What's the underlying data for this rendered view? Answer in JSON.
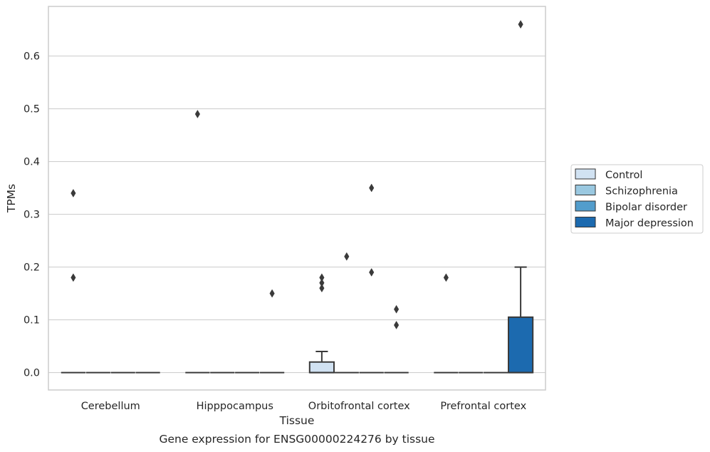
{
  "chart_data": {
    "type": "box",
    "caption": "Gene expression for ENSG00000224276 by tissue",
    "xlabel": "Tissue",
    "ylabel": "TPMs",
    "ylim": [
      -0.033,
      0.694
    ],
    "yticks": [
      0.0,
      0.1,
      0.2,
      0.3,
      0.4,
      0.5,
      0.6
    ],
    "ytick_labels": [
      "0.0",
      "0.1",
      "0.2",
      "0.3",
      "0.4",
      "0.5",
      "0.6"
    ],
    "categories": [
      "Cerebellum",
      "Hipppocampus",
      "Orbitofrontal cortex",
      "Prefrontal cortex"
    ],
    "grid": "horizontal",
    "legend_position": "right",
    "series": [
      {
        "name": "Control",
        "color": "#d1e2f2",
        "boxes": [
          {
            "q1": 0.0,
            "median": 0.0,
            "q3": 0.0,
            "whisker_low": 0.0,
            "whisker_high": 0.0,
            "outliers": [
              0.18,
              0.34
            ]
          },
          {
            "q1": 0.0,
            "median": 0.0,
            "q3": 0.0,
            "whisker_low": 0.0,
            "whisker_high": 0.0,
            "outliers": [
              0.49
            ]
          },
          {
            "q1": 0.0,
            "median": 0.0,
            "q3": 0.02,
            "whisker_low": 0.0,
            "whisker_high": 0.04,
            "outliers": [
              0.16,
              0.17,
              0.18
            ]
          },
          {
            "q1": 0.0,
            "median": 0.0,
            "q3": 0.0,
            "whisker_low": 0.0,
            "whisker_high": 0.0,
            "outliers": [
              0.18
            ]
          }
        ]
      },
      {
        "name": "Schizophrenia",
        "color": "#9ac8e0",
        "boxes": [
          {
            "q1": 0.0,
            "median": 0.0,
            "q3": 0.0,
            "whisker_low": 0.0,
            "whisker_high": 0.0,
            "outliers": []
          },
          {
            "q1": 0.0,
            "median": 0.0,
            "q3": 0.0,
            "whisker_low": 0.0,
            "whisker_high": 0.0,
            "outliers": []
          },
          {
            "q1": 0.0,
            "median": 0.0,
            "q3": 0.0,
            "whisker_low": 0.0,
            "whisker_high": 0.0,
            "outliers": [
              0.22
            ]
          },
          {
            "q1": 0.0,
            "median": 0.0,
            "q3": 0.0,
            "whisker_low": 0.0,
            "whisker_high": 0.0,
            "outliers": []
          }
        ]
      },
      {
        "name": "Bipolar disorder",
        "color": "#529dcc",
        "boxes": [
          {
            "q1": 0.0,
            "median": 0.0,
            "q3": 0.0,
            "whisker_low": 0.0,
            "whisker_high": 0.0,
            "outliers": []
          },
          {
            "q1": 0.0,
            "median": 0.0,
            "q3": 0.0,
            "whisker_low": 0.0,
            "whisker_high": 0.0,
            "outliers": []
          },
          {
            "q1": 0.0,
            "median": 0.0,
            "q3": 0.0,
            "whisker_low": 0.0,
            "whisker_high": 0.0,
            "outliers": [
              0.19,
              0.35
            ]
          },
          {
            "q1": 0.0,
            "median": 0.0,
            "q3": 0.0,
            "whisker_low": 0.0,
            "whisker_high": 0.0,
            "outliers": []
          }
        ]
      },
      {
        "name": "Major depression",
        "color": "#1c6aaf",
        "boxes": [
          {
            "q1": 0.0,
            "median": 0.0,
            "q3": 0.0,
            "whisker_low": 0.0,
            "whisker_high": 0.0,
            "outliers": []
          },
          {
            "q1": 0.0,
            "median": 0.0,
            "q3": 0.0,
            "whisker_low": 0.0,
            "whisker_high": 0.0,
            "outliers": [
              0.15
            ]
          },
          {
            "q1": 0.0,
            "median": 0.0,
            "q3": 0.0,
            "whisker_low": 0.0,
            "whisker_high": 0.0,
            "outliers": [
              0.09,
              0.12
            ]
          },
          {
            "q1": 0.0,
            "median": 0.0,
            "q3": 0.105,
            "whisker_low": 0.0,
            "whisker_high": 0.2,
            "outliers": [
              0.66
            ]
          }
        ]
      }
    ]
  },
  "style": {
    "line_color": "#3a3a3a",
    "grid_color": "#d0d0d0",
    "frame_color": "#cccccc"
  }
}
